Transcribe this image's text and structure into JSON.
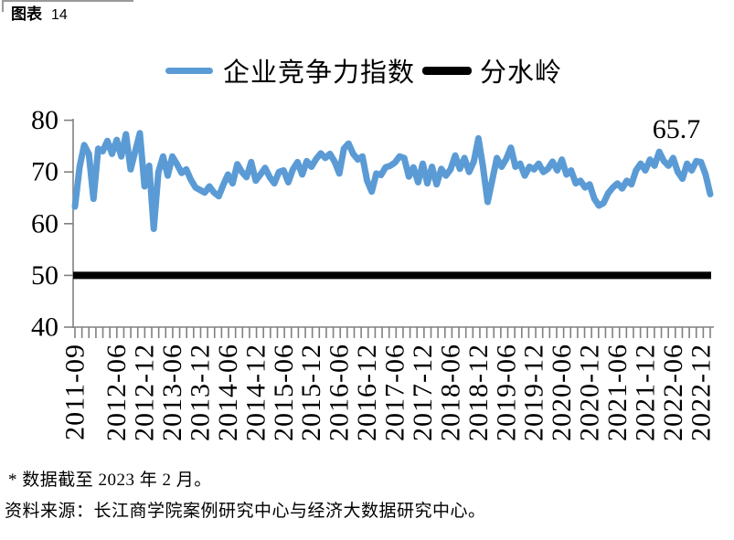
{
  "header": {
    "label": "图表",
    "number": "14"
  },
  "footnotes": [
    "* 数据截至 2023 年 2 月。",
    "资料来源：长江商学院案例研究中心与经济大数据研究中心。"
  ],
  "chart_data": {
    "type": "line",
    "title": "",
    "legend_position": "top",
    "grid": false,
    "legend": [
      {
        "label": "企业竞争力指数",
        "color": "#5B9BD5"
      },
      {
        "label": "分水岭",
        "color": "#000000"
      }
    ],
    "y_axis": {
      "range": [
        40,
        80
      ],
      "ticks": [
        40,
        50,
        60,
        70,
        80
      ]
    },
    "x_axis": {
      "start": "2011-09",
      "end": "2023-02",
      "frequency": "monthly",
      "tick_labels": [
        "2011-09",
        "2012-06",
        "2012-12",
        "2013-06",
        "2013-12",
        "2014-06",
        "2014-12",
        "2015-06",
        "2015-12",
        "2016-06",
        "2016-12",
        "2017-06",
        "2017-12",
        "2018-06",
        "2018-12",
        "2019-06",
        "2019-12",
        "2020-06",
        "2020-12",
        "2021-06",
        "2021-12",
        "2022-06",
        "2022-12"
      ]
    },
    "series": [
      {
        "name": "企业竞争力指数",
        "color": "#5B9BD5",
        "start": "2011-09",
        "frequency": "monthly",
        "values": [
          63.3,
          71,
          75.2,
          73.5,
          64.8,
          74.5,
          74,
          76,
          73.5,
          76.2,
          73,
          77.3,
          70.5,
          74,
          77.5,
          67.2,
          71.2,
          59,
          70,
          73,
          69.3,
          73,
          71.5,
          69.8,
          70.5,
          68.5,
          67,
          66.5,
          66,
          67.2,
          66,
          65.3,
          67.5,
          69.5,
          67.8,
          71.5,
          70,
          69,
          71.9,
          68.3,
          69.5,
          70.8,
          69,
          67.8,
          70,
          70.3,
          68,
          70.5,
          71.9,
          69.5,
          72.1,
          71,
          72.5,
          73.6,
          72.7,
          73.5,
          72,
          69.7,
          74.5,
          75.5,
          73.5,
          72.4,
          73,
          68.3,
          66.2,
          69.7,
          69.4,
          70.9,
          71.2,
          71.8,
          73,
          72.7,
          69.1,
          70.9,
          68,
          71.6,
          67.8,
          71,
          67.6,
          70.6,
          69.3,
          70.5,
          73.2,
          70.6,
          72.7,
          70,
          72,
          76.5,
          71,
          64.2,
          68.5,
          72.7,
          71,
          72.5,
          74.7,
          71,
          71.6,
          69.3,
          71,
          70.5,
          71.6,
          70,
          70.6,
          72,
          70.3,
          72.4,
          69.5,
          70.3,
          67.8,
          68.3,
          67,
          67.6,
          64.8,
          63.5,
          64,
          65.9,
          67,
          67.8,
          66.8,
          68.3,
          67.6,
          70.3,
          71.6,
          70.3,
          72.4,
          71.2,
          73.9,
          72.1,
          71.2,
          72.7,
          70,
          68.7,
          71.6,
          70.3,
          72.1,
          71.9,
          69.5,
          65.7
        ]
      },
      {
        "name": "分水岭",
        "color": "#000000",
        "constant_value": 50
      }
    ],
    "annotation": {
      "text": "65.7"
    }
  }
}
